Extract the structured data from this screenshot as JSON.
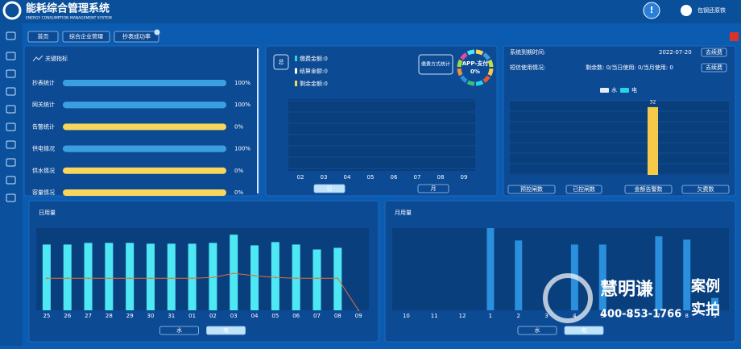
{
  "header": {
    "title": "能耗综合管理系统",
    "subtitle": "ENERGY CONSUMPTION MANAGEMENT SYSTEM",
    "user": "包钢还原铁"
  },
  "tabs": [
    "首页",
    "综合企业管理",
    "抄表成功率"
  ],
  "key_indicators": {
    "title": "关键指标",
    "categories": [
      "抄表统计",
      "网关统计",
      "告警统计",
      "供电情况",
      "供水情况",
      "容量情况"
    ],
    "values": [
      100,
      100,
      0,
      100,
      0,
      0
    ],
    "value_labels": [
      "100%",
      "100%",
      "0%",
      "100%",
      "0%",
      "0%"
    ],
    "track_colors": [
      "#3a9ee0",
      "#3a9ee0",
      "#f7d65c",
      "#3a9ee0",
      "#f7d65c",
      "#f7d65c"
    ],
    "color": "#3a9ee0"
  },
  "payment": {
    "total": "总",
    "legend": [
      "缴费金额:0",
      "结算金额:0",
      "剩余金额:0"
    ],
    "legend_colors": [
      "#27d4e6",
      "#ffffff",
      "#f7d65c"
    ],
    "method_title": "缴费方式统计",
    "donut_label": "APP-支付",
    "donut_value": 0,
    "donut_value_label": "0%",
    "categories": [
      "02",
      "03",
      "04",
      "05",
      "06",
      "07",
      "08",
      "09"
    ],
    "buttons": [
      "日",
      "月"
    ]
  },
  "alerts": {
    "expiry_label": "系统到期时间:",
    "expiry_date": "2022-07-20",
    "renew": "去续费",
    "sms_label": "短信使用情况:",
    "sms_usage": "剩余数: 0/当日使用: 0/当月使用: 0",
    "renew_sms": "去续费",
    "type": "bar",
    "categories": [
      "预控闸数",
      "已控闸数",
      "金额告警数",
      "欠费数"
    ],
    "series": [
      {
        "name": "水",
        "color": "#e6ecf5",
        "values": [
          0,
          0,
          0,
          0
        ]
      },
      {
        "name": "电",
        "color": "#27d4e6",
        "values": [
          0,
          0,
          32,
          0
        ]
      }
    ],
    "bar_color": "#f7c948",
    "ylim": [
      0,
      35
    ]
  },
  "daily": {
    "title": "日用量",
    "type": "bar",
    "categories": [
      "25",
      "26",
      "27",
      "28",
      "29",
      "30",
      "31",
      "01",
      "02",
      "03",
      "04",
      "05",
      "06",
      "07",
      "08",
      "09"
    ],
    "values": [
      80,
      80,
      82,
      82,
      82,
      81,
      81,
      81,
      82,
      92,
      79,
      83,
      80,
      74,
      76,
      0
    ],
    "color": "#4ee8f5",
    "line": {
      "color": "#e0703a",
      "values": [
        39,
        39,
        39,
        39,
        39,
        39,
        39,
        39,
        40,
        45,
        42,
        40,
        39,
        39,
        39,
        0
      ]
    },
    "ylim": [
      0,
      100
    ],
    "buttons": [
      "水",
      "电"
    ]
  },
  "monthly": {
    "title": "月用量",
    "type": "bar",
    "categories": [
      "10",
      "11",
      "12",
      "1",
      "2",
      "3",
      "4",
      "5",
      "6",
      "7",
      "8",
      "9"
    ],
    "values": [
      0,
      0,
      0,
      100,
      85,
      0,
      80,
      80,
      0,
      90,
      86,
      15
    ],
    "color": "#2a8fdc",
    "ylim": [
      0,
      100
    ],
    "buttons": [
      "水",
      "电"
    ]
  },
  "watermark": {
    "brand": "慧明谦",
    "tag1": "案例",
    "tag2": "实拍",
    "phone": "400-853-1766"
  }
}
